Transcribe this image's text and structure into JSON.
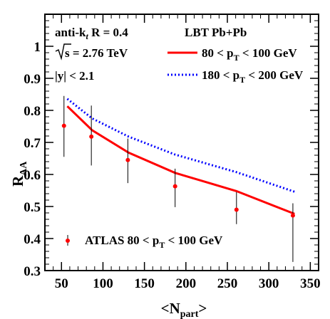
{
  "chart_data": {
    "type": "line",
    "xlabel": "<N",
    "xlabel_sub": "part",
    "xlabel_end": ">",
    "ylabel": "R",
    "ylabel_sub": "AA",
    "xlim": [
      30,
      360
    ],
    "ylim": [
      0.3,
      1.1
    ],
    "x_ticks": [
      50,
      100,
      150,
      200,
      250,
      300,
      350
    ],
    "y_ticks": [
      0.3,
      0.4,
      0.5,
      0.6,
      0.7,
      0.8,
      0.9,
      1
    ],
    "x_tick_labels": [
      "50",
      "100",
      "150",
      "200",
      "250",
      "300",
      "350"
    ],
    "y_tick_labels": [
      "0.3",
      "0.4",
      "0.5",
      "0.6",
      "0.7",
      "0.8",
      "0.9",
      "1"
    ],
    "grid": false,
    "annotations": {
      "jet_alg": "anti-k",
      "jet_alg_sub": "t",
      "jet_alg_rest": " R = 0.4",
      "energy": "s = 2.76 TeV",
      "rapidity": "|y| < 2.1",
      "model": "LBT Pb+Pb"
    },
    "series": [
      {
        "name": "80 < p",
        "name_sub": "T",
        "name_rest": " < 100 GeV",
        "color": "#ff0000",
        "style": "solid",
        "x": [
          57,
          87,
          131,
          187,
          261,
          331
        ],
        "y": [
          0.813,
          0.738,
          0.668,
          0.605,
          0.548,
          0.477
        ]
      },
      {
        "name": "180 < p",
        "name_sub": "T",
        "name_rest": " < 200 GeV",
        "color": "#0000ff",
        "style": "dotted",
        "x": [
          57,
          87,
          131,
          187,
          261,
          331
        ],
        "y": [
          0.836,
          0.775,
          0.718,
          0.662,
          0.607,
          0.546
        ]
      }
    ],
    "data_points": {
      "name": "ATLAS 80 < p",
      "name_sub": "T",
      "name_rest": " < 100 GeV",
      "color": "#ff0000",
      "x": [
        53,
        86,
        130,
        187,
        261,
        329
      ],
      "y": [
        0.752,
        0.718,
        0.645,
        0.563,
        0.49,
        0.472
      ],
      "err_low": [
        0.655,
        0.628,
        0.573,
        0.498,
        0.445,
        0.327
      ],
      "err_high": [
        0.845,
        0.815,
        0.712,
        0.618,
        0.545,
        0.51
      ]
    }
  }
}
